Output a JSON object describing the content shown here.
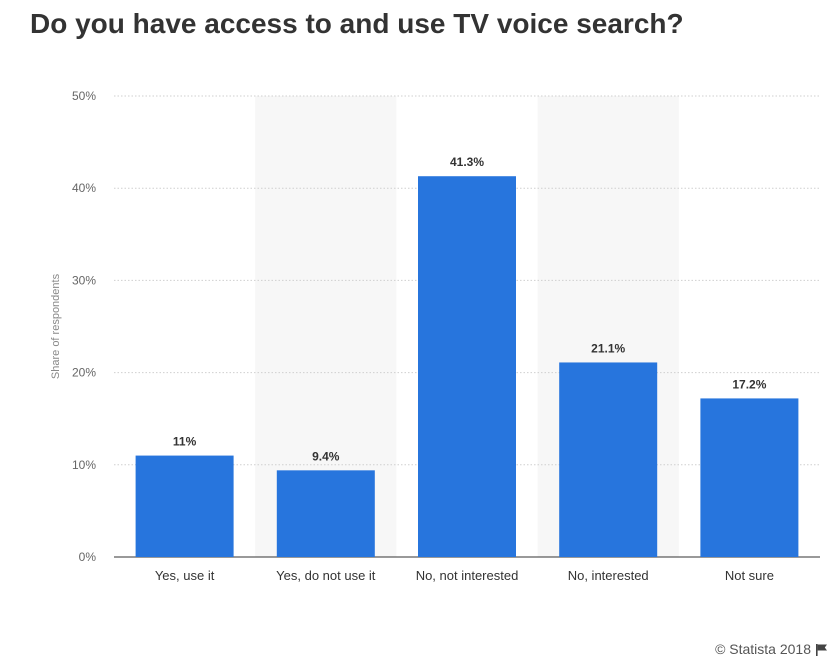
{
  "header": {
    "title": "Do you have access to and use TV voice search?"
  },
  "footer": {
    "credit": "© Statista 2018",
    "icon": "flag-icon"
  },
  "colors": {
    "bar": "#2775DD",
    "grid": "#cfcfcf",
    "band": "#f7f7f7",
    "label": "#333333",
    "axis_text": "#666666"
  },
  "chart_data": {
    "type": "bar",
    "title": "",
    "xlabel": "",
    "ylabel": "Share of respondents",
    "categories": [
      "Yes, use it",
      "Yes, do not use it",
      "No, not interested",
      "No, interested",
      "Not sure"
    ],
    "values": [
      11,
      9.4,
      41.3,
      21.1,
      17.2
    ],
    "value_labels": [
      "11%",
      "9.4%",
      "41.3%",
      "21.1%",
      "17.2%"
    ],
    "ylim": [
      0,
      50
    ],
    "yticks": [
      0,
      10,
      20,
      30,
      40,
      50
    ],
    "ytick_labels": [
      "0%",
      "10%",
      "20%",
      "30%",
      "40%",
      "50%"
    ],
    "grid": true,
    "alternating_bands": true
  }
}
